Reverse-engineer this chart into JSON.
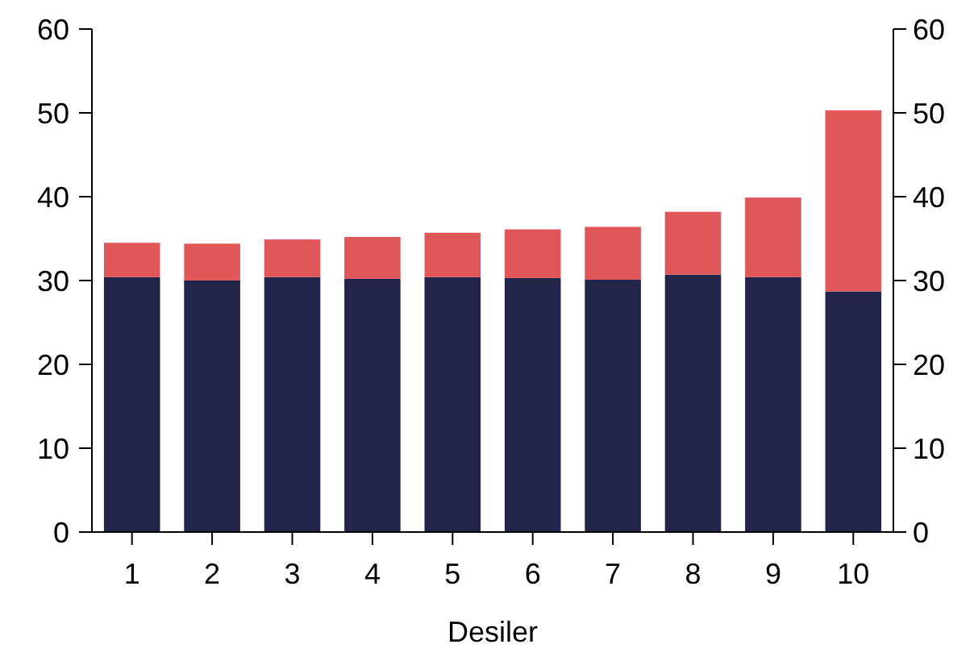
{
  "chart_data": {
    "type": "bar",
    "stacked": true,
    "xlabel": "Desiler",
    "categories": [
      "1",
      "2",
      "3",
      "4",
      "5",
      "6",
      "7",
      "8",
      "9",
      "10"
    ],
    "series": [
      {
        "color": "#22244a",
        "values": [
          30.4,
          30.0,
          30.4,
          30.2,
          30.4,
          30.3,
          30.1,
          30.7,
          30.4,
          28.7
        ]
      },
      {
        "color": "#e0575a",
        "values": [
          4.1,
          4.4,
          4.5,
          5.0,
          5.3,
          5.8,
          6.3,
          7.5,
          9.5,
          21.6
        ]
      }
    ],
    "ylim": [
      0,
      60
    ],
    "yticks": [
      0,
      10,
      20,
      30,
      40,
      50,
      60
    ],
    "y2lim": [
      0,
      60
    ],
    "y2ticks": [
      0,
      10,
      20,
      30,
      40,
      50,
      60
    ]
  }
}
